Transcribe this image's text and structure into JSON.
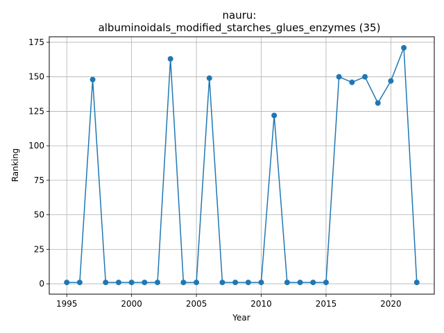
{
  "chart_data": {
    "type": "line",
    "title_line1": "nauru:",
    "title_line2": "albuminoidals_modified_starches_glues_enzymes (35)",
    "xlabel": "Year",
    "ylabel": "Ranking",
    "x": [
      1995,
      1996,
      1997,
      1998,
      1999,
      2000,
      2001,
      2002,
      2003,
      2004,
      2005,
      2006,
      2007,
      2008,
      2009,
      2010,
      2011,
      2012,
      2013,
      2014,
      2015,
      2016,
      2017,
      2018,
      2019,
      2020,
      2021,
      2022
    ],
    "y": [
      1,
      1,
      148,
      1,
      1,
      1,
      1,
      1,
      163,
      1,
      1,
      149,
      1,
      1,
      1,
      1,
      122,
      1,
      1,
      1,
      1,
      150,
      146,
      150,
      131,
      147,
      171,
      1
    ],
    "xlim": [
      1993.65,
      1995.0,
      2023.35
    ],
    "ylim": [
      -7.5,
      179
    ],
    "xticks": [
      1995,
      2000,
      2005,
      2010,
      2015,
      2020
    ],
    "yticks": [
      0,
      25,
      50,
      75,
      100,
      125,
      150,
      175
    ],
    "grid": true,
    "line_color": "#1f77b4"
  }
}
